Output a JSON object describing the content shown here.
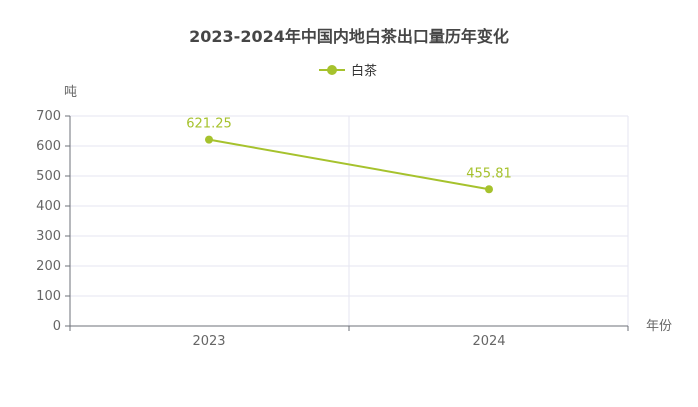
{
  "chart_data": {
    "type": "line",
    "title": "2023-2024年中国内地白茶出口量历年变化",
    "xlabel": "年份",
    "ylabel": "吨",
    "categories": [
      "2023",
      "2024"
    ],
    "ylim": [
      0,
      700
    ],
    "yticks": [
      0,
      100,
      200,
      300,
      400,
      500,
      600,
      700
    ],
    "grid": true,
    "legend": "top-center",
    "series": [
      {
        "name": "白茶",
        "values": [
          621.25,
          455.81
        ],
        "labels": [
          "621.25",
          "455.81"
        ],
        "color": "#a6c22d"
      }
    ]
  },
  "colors": {
    "series": "#a6c22d",
    "grid": "#e6e6f2",
    "axis": "#6e7079",
    "text": "#666666"
  }
}
